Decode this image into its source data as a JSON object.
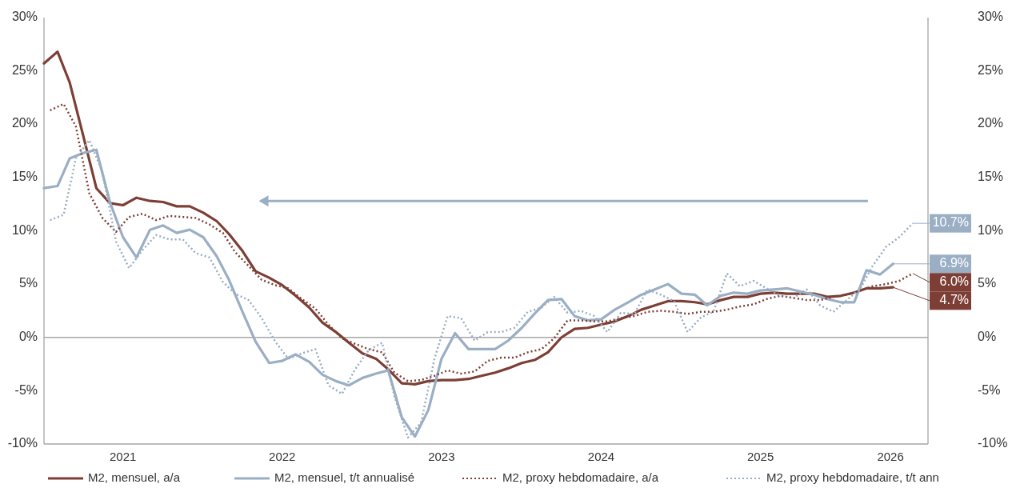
{
  "chart_data": {
    "type": "line",
    "x": [
      "2021-01",
      "2021-02",
      "2021-03",
      "2021-04",
      "2021-05",
      "2021-06",
      "2021-07",
      "2021-08",
      "2021-09",
      "2021-10",
      "2021-11",
      "2021-12",
      "2022-01",
      "2022-02",
      "2022-03",
      "2022-04",
      "2022-05",
      "2022-06",
      "2022-07",
      "2022-08",
      "2022-09",
      "2022-10",
      "2022-11",
      "2022-12",
      "2023-01",
      "2023-02",
      "2023-03",
      "2023-04",
      "2023-05",
      "2023-06",
      "2023-07",
      "2023-08",
      "2023-09",
      "2023-10",
      "2023-11",
      "2023-12",
      "2024-01",
      "2024-02",
      "2024-03",
      "2024-04",
      "2024-05",
      "2024-06",
      "2024-07",
      "2024-08",
      "2024-09",
      "2024-10",
      "2024-11",
      "2024-12",
      "2025-01",
      "2025-02",
      "2025-03",
      "2025-04",
      "2025-05",
      "2025-06",
      "2025-07",
      "2025-08",
      "2025-09",
      "2025-10",
      "2025-11",
      "2025-12",
      "2026-01",
      "2026-02",
      "2026-03",
      "2026-04",
      "2026-05"
    ],
    "series": [
      {
        "name": "M2, mensuel, a/a",
        "color": "#7d3f35",
        "line_style": "solid",
        "value_labels": [
          null,
          null,
          null,
          null,
          null,
          null,
          null,
          null,
          null,
          null,
          null,
          null,
          null,
          null,
          null,
          null,
          null,
          null,
          null,
          null,
          null,
          null,
          null,
          null,
          null,
          null,
          null,
          null,
          null,
          null,
          null,
          null,
          null,
          null,
          null,
          null,
          null,
          null,
          null,
          null,
          null,
          null,
          null,
          null,
          null,
          null,
          null,
          null,
          null,
          null,
          null,
          null,
          null,
          null,
          null,
          null,
          null,
          null,
          null,
          null,
          null,
          null,
          null,
          null,
          "4.7%"
        ],
        "values": [
          25.7,
          26.8,
          23.9,
          18.9,
          14.0,
          12.6,
          12.4,
          13.1,
          12.8,
          12.7,
          12.3,
          12.3,
          11.7,
          10.9,
          9.7,
          8.1,
          6.2,
          5.6,
          4.9,
          3.9,
          2.8,
          1.4,
          0.5,
          -0.5,
          -1.5,
          -2.0,
          -3.0,
          -4.3,
          -4.4,
          -4.1,
          -4.0,
          -4.0,
          -3.9,
          -3.6,
          -3.3,
          -2.9,
          -2.4,
          -2.1,
          -1.4,
          0.0,
          0.8,
          0.9,
          1.2,
          1.5,
          2.0,
          2.6,
          3.0,
          3.4,
          3.4,
          3.3,
          3.1,
          3.5,
          3.8,
          3.8,
          4.1,
          4.2,
          4.1,
          4.1,
          4.1,
          3.8,
          3.9,
          4.2,
          4.6,
          4.6,
          4.7
        ]
      },
      {
        "name": "M2, mensuel, t/t annualisé",
        "color": "#9aaec4",
        "line_style": "solid",
        "value_labels": [
          null,
          null,
          null,
          null,
          null,
          null,
          null,
          null,
          null,
          null,
          null,
          null,
          null,
          null,
          null,
          null,
          null,
          null,
          null,
          null,
          null,
          null,
          null,
          null,
          null,
          null,
          null,
          null,
          null,
          null,
          null,
          null,
          null,
          null,
          null,
          null,
          null,
          null,
          null,
          null,
          null,
          null,
          null,
          null,
          null,
          null,
          null,
          null,
          null,
          null,
          null,
          null,
          null,
          null,
          null,
          null,
          null,
          null,
          null,
          null,
          null,
          null,
          null,
          null,
          "6.9%"
        ],
        "values": [
          14.0,
          14.2,
          16.8,
          17.3,
          17.6,
          12.7,
          9.4,
          7.5,
          10.1,
          10.5,
          9.8,
          10.1,
          9.4,
          7.6,
          5.4,
          2.4,
          -0.4,
          -2.4,
          -2.2,
          -1.6,
          -2.3,
          -3.5,
          -4.1,
          -4.5,
          -3.8,
          -3.4,
          -3.1,
          -7.5,
          -9.3,
          -6.8,
          -2.0,
          0.4,
          -1.1,
          -1.1,
          -1.1,
          -0.3,
          0.9,
          2.3,
          3.5,
          3.6,
          2.0,
          1.6,
          1.7,
          2.6,
          3.3,
          4.0,
          4.5,
          5.0,
          4.1,
          4.0,
          3.0,
          3.9,
          4.2,
          4.1,
          4.4,
          4.5,
          4.6,
          4.3,
          4.0,
          3.6,
          3.3,
          3.3,
          6.3,
          5.9,
          6.9
        ]
      },
      {
        "name": "M2, proxy hebdomadaire, a/a",
        "color": "#7d3f35",
        "line_style": "dotted",
        "value_labels": [
          null,
          null,
          null,
          null,
          null,
          null,
          null,
          null,
          null,
          null,
          null,
          null,
          null,
          null,
          null,
          null,
          null,
          null,
          null,
          null,
          null,
          null,
          null,
          null,
          null,
          null,
          null,
          null,
          null,
          null,
          null,
          null,
          null,
          null,
          null,
          null,
          null,
          null,
          null,
          null,
          null,
          null,
          null,
          null,
          null,
          null,
          null,
          null,
          null,
          null,
          null,
          null,
          null,
          null,
          null,
          null,
          null,
          null,
          null,
          null,
          null,
          null,
          null,
          null,
          null,
          "6.0%"
        ],
        "x": [
          "2021-01-15",
          "2021-02-15",
          "2021-03-15",
          "2021-04-15",
          "2021-05-15",
          "2021-06-15",
          "2021-07-15",
          "2021-08-15",
          "2021-09-15",
          "2021-10-15",
          "2021-11-15",
          "2021-12-15",
          "2022-01-15",
          "2022-02-15",
          "2022-03-15",
          "2022-04-15",
          "2022-05-15",
          "2022-06-15",
          "2022-07-15",
          "2022-08-15",
          "2022-09-15",
          "2022-10-15",
          "2022-11-15",
          "2022-12-15",
          "2023-01-15",
          "2023-02-15",
          "2023-03-15",
          "2023-04-15",
          "2023-05-15",
          "2023-06-15",
          "2023-07-15",
          "2023-08-15",
          "2023-09-15",
          "2023-10-15",
          "2023-11-15",
          "2023-12-15",
          "2024-01-15",
          "2024-02-15",
          "2024-03-15",
          "2024-04-15",
          "2024-05-15",
          "2024-06-15",
          "2024-07-15",
          "2024-08-15",
          "2024-09-15",
          "2024-10-15",
          "2024-11-15",
          "2024-12-15",
          "2025-01-15",
          "2025-02-15",
          "2025-03-15",
          "2025-04-15",
          "2025-05-15",
          "2025-06-15",
          "2025-07-15",
          "2025-08-15",
          "2025-09-15",
          "2025-10-15",
          "2025-11-15",
          "2025-12-15",
          "2026-01-15",
          "2026-02-15",
          "2026-03-15",
          "2026-04-15",
          "2026-05-15",
          "2026-06-15"
        ],
        "values": [
          21.3,
          21.9,
          19.8,
          13.5,
          11.2,
          9.9,
          11.3,
          11.6,
          11.0,
          11.4,
          11.3,
          11.2,
          10.6,
          9.8,
          8.0,
          6.7,
          5.4,
          4.9,
          4.6,
          3.6,
          2.7,
          1.2,
          -0.1,
          -0.6,
          -1.1,
          -1.4,
          -3.3,
          -4.1,
          -4.0,
          -3.6,
          -3.1,
          -3.4,
          -3.2,
          -2.2,
          -1.9,
          -1.9,
          -1.4,
          -1.1,
          -0.1,
          1.6,
          1.6,
          1.5,
          1.5,
          1.8,
          2.0,
          2.4,
          2.5,
          2.4,
          2.2,
          2.4,
          2.4,
          2.6,
          2.9,
          3.1,
          3.6,
          3.9,
          3.7,
          3.5,
          3.5,
          3.8,
          4.0,
          4.4,
          4.8,
          5.0,
          5.3,
          6.0
        ]
      },
      {
        "name": "M2, proxy hebdomadaire, t/t ann",
        "color": "#9aaec4",
        "line_style": "dotted",
        "value_labels": [
          null,
          null,
          null,
          null,
          null,
          null,
          null,
          null,
          null,
          null,
          null,
          null,
          null,
          null,
          null,
          null,
          null,
          null,
          null,
          null,
          null,
          null,
          null,
          null,
          null,
          null,
          null,
          null,
          null,
          null,
          null,
          null,
          null,
          null,
          null,
          null,
          null,
          null,
          null,
          null,
          null,
          null,
          null,
          null,
          null,
          null,
          null,
          null,
          null,
          null,
          null,
          null,
          null,
          null,
          null,
          null,
          null,
          null,
          null,
          null,
          null,
          null,
          null,
          null,
          null,
          "10.7%"
        ],
        "x": [
          "2021-01-15",
          "2021-02-15",
          "2021-03-15",
          "2021-04-15",
          "2021-05-15",
          "2021-06-15",
          "2021-07-15",
          "2021-08-15",
          "2021-09-15",
          "2021-10-15",
          "2021-11-15",
          "2021-12-15",
          "2022-01-15",
          "2022-02-15",
          "2022-03-15",
          "2022-04-15",
          "2022-05-15",
          "2022-06-15",
          "2022-07-15",
          "2022-08-15",
          "2022-09-15",
          "2022-10-15",
          "2022-11-15",
          "2022-12-15",
          "2023-01-15",
          "2023-02-15",
          "2023-03-15",
          "2023-04-15",
          "2023-05-15",
          "2023-06-15",
          "2023-07-15",
          "2023-08-15",
          "2023-09-15",
          "2023-10-15",
          "2023-11-15",
          "2023-12-15",
          "2024-01-15",
          "2024-02-15",
          "2024-03-15",
          "2024-04-15",
          "2024-05-15",
          "2024-06-15",
          "2024-07-15",
          "2024-08-15",
          "2024-09-15",
          "2024-10-15",
          "2024-11-15",
          "2024-12-15",
          "2025-01-15",
          "2025-02-15",
          "2025-03-15",
          "2025-04-15",
          "2025-05-15",
          "2025-06-15",
          "2025-07-15",
          "2025-08-15",
          "2025-09-15",
          "2025-10-15",
          "2025-11-15",
          "2025-12-15",
          "2026-01-15",
          "2026-02-15",
          "2026-03-15",
          "2026-04-15",
          "2026-05-15",
          "2026-06-15"
        ],
        "values": [
          11.0,
          11.5,
          16.8,
          18.5,
          15.5,
          9.0,
          6.5,
          8.2,
          9.6,
          9.2,
          9.2,
          7.9,
          7.5,
          5.2,
          4.1,
          3.5,
          1.8,
          -0.4,
          -2.0,
          -1.5,
          -1.1,
          -4.5,
          -5.3,
          -3.0,
          -1.2,
          -0.5,
          -5.5,
          -9.4,
          -8.0,
          -2.0,
          2.0,
          1.8,
          -0.3,
          0.5,
          0.5,
          0.9,
          2.4,
          2.8,
          3.8,
          2.3,
          2.5,
          2.0,
          0.5,
          2.3,
          2.2,
          4.5,
          4.0,
          3.4,
          0.5,
          1.9,
          2.4,
          6.0,
          4.8,
          5.3,
          4.6,
          3.9,
          3.7,
          4.5,
          3.0,
          2.4,
          3.5,
          4.6,
          6.7,
          8.5,
          9.4,
          10.7
        ]
      }
    ],
    "xlim": [
      "2021-01-01",
      "2026-07-20"
    ],
    "xticks": [
      {
        "value": "2021-07-01",
        "label": "2021"
      },
      {
        "value": "2022-07-01",
        "label": "2022"
      },
      {
        "value": "2023-07-01",
        "label": "2023"
      },
      {
        "value": "2024-07-01",
        "label": "2024"
      },
      {
        "value": "2025-07-01",
        "label": "2025"
      },
      {
        "value": "2026-04-25",
        "label": "2026"
      }
    ],
    "ylim": [
      -10,
      30
    ],
    "yticks": [
      {
        "value": -10,
        "label": "-10%"
      },
      {
        "value": -5,
        "label": "-5%"
      },
      {
        "value": 0,
        "label": "0%"
      },
      {
        "value": 5,
        "label": "5%"
      },
      {
        "value": 10,
        "label": "10%"
      },
      {
        "value": 15,
        "label": "15%"
      },
      {
        "value": 20,
        "label": "20%"
      },
      {
        "value": 25,
        "label": "25%"
      },
      {
        "value": 30,
        "label": "30%"
      }
    ],
    "y2lim": [
      -10,
      30
    ],
    "y2ticks": [
      {
        "value": -10,
        "label": "-10%"
      },
      {
        "value": -5,
        "label": "-5%"
      },
      {
        "value": 0,
        "label": "0%"
      },
      {
        "value": 5,
        "label": "5%"
      },
      {
        "value": 10,
        "label": "10%"
      },
      {
        "value": 15,
        "label": "15%"
      },
      {
        "value": 20,
        "label": "20%"
      },
      {
        "value": 25,
        "label": "25%"
      },
      {
        "value": 30,
        "label": "30%"
      }
    ],
    "ref_lines": [
      {
        "axis": "y",
        "value": 0,
        "color": "#a6a6a6"
      }
    ],
    "grid": false,
    "marker": "none",
    "legend": "bottom"
  }
}
